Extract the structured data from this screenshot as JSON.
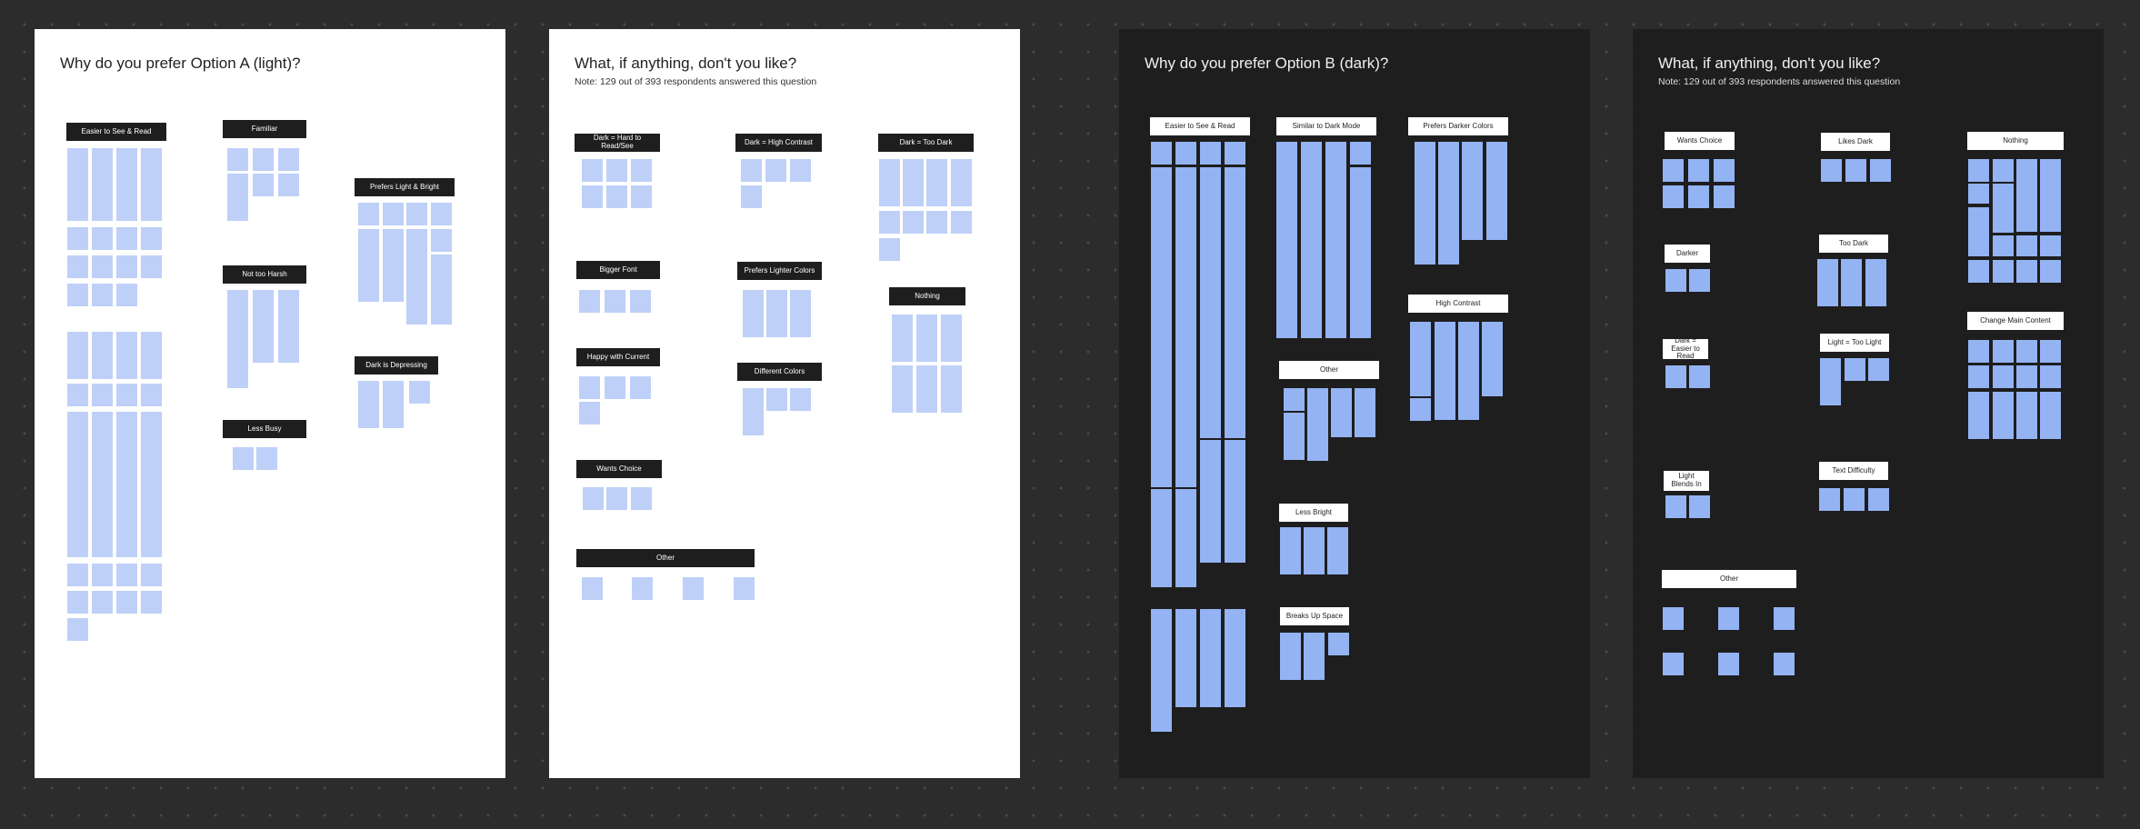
{
  "frames": [
    {
      "id": "a-like",
      "theme": "light",
      "title": "Why do you prefer Option A (light)?",
      "note": "",
      "clusters": [
        {
          "label": "Easier to See & Read",
          "count": 44
        },
        {
          "label": "Familiar",
          "count": 7
        },
        {
          "label": "Prefers Light & Bright",
          "count": 11
        },
        {
          "label": "Not too Harsh",
          "count": 3
        },
        {
          "label": "Dark is Depressing",
          "count": 3
        },
        {
          "label": "Less Busy",
          "count": 2
        }
      ]
    },
    {
      "id": "a-dislike",
      "theme": "light",
      "title": "What, if anything, don't you like?",
      "note": "Note: 129 out of 393 respondents answered this question",
      "clusters": [
        {
          "label": "Dark = Hard to Read/See",
          "count": 6
        },
        {
          "label": "Dark = High Contrast",
          "count": 4
        },
        {
          "label": "Dark = Too Dark",
          "count": 9
        },
        {
          "label": "Bigger Font",
          "count": 3
        },
        {
          "label": "Prefers Lighter Colors",
          "count": 3
        },
        {
          "label": "Nothing",
          "count": 6
        },
        {
          "label": "Happy with Current",
          "count": 4
        },
        {
          "label": "Different Colors",
          "count": 3
        },
        {
          "label": "Wants Choice",
          "count": 3
        },
        {
          "label": "Other",
          "count": 4
        }
      ]
    },
    {
      "id": "b-like",
      "theme": "dark",
      "title": "Why do you prefer Option B (dark)?",
      "note": "",
      "clusters": [
        {
          "label": "Easier to See & Read",
          "count": 13
        },
        {
          "label": "Similar to Dark Mode",
          "count": 5
        },
        {
          "label": "Prefers Darker Colors",
          "count": 5
        },
        {
          "label": "High Contrast",
          "count": 5
        },
        {
          "label": "Other",
          "count": 5
        },
        {
          "label": "Less Bright",
          "count": 3
        },
        {
          "label": "Breaks Up Space",
          "count": 3
        }
      ]
    },
    {
      "id": "b-dislike",
      "theme": "dark",
      "title": "What, if anything, don't you like?",
      "note": "Note: 129 out of 393 respondents answered this question",
      "clusters": [
        {
          "label": "Wants Choice",
          "count": 6
        },
        {
          "label": "Likes Dark",
          "count": 3
        },
        {
          "label": "Nothing",
          "count": 14
        },
        {
          "label": "Darker",
          "count": 2
        },
        {
          "label": "Too Dark",
          "count": 3
        },
        {
          "label": "Change Main Content",
          "count": 12
        },
        {
          "label": "Dark = Easier to Read",
          "count": 2
        },
        {
          "label": "Light = Too Light",
          "count": 4
        },
        {
          "label": "Light Blends In",
          "count": 2
        },
        {
          "label": "Text Difficulty",
          "count": 3
        },
        {
          "label": "Other",
          "count": 6
        }
      ]
    }
  ]
}
